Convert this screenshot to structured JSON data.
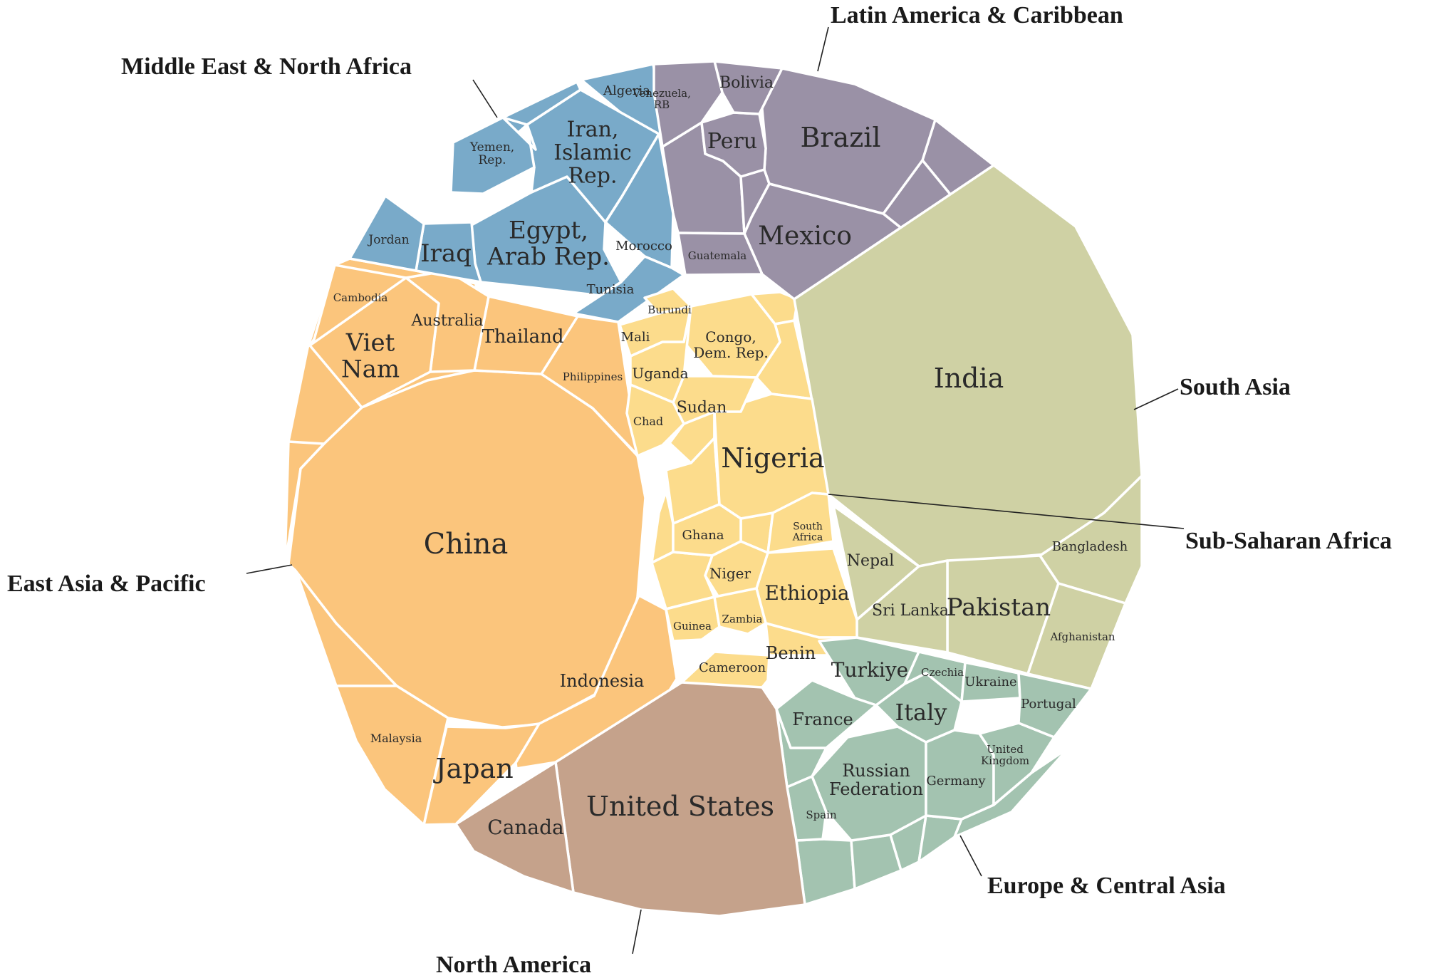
{
  "regions": [
    {
      "id": "mena",
      "name": "Middle East & North Africa",
      "color": "#79aac9"
    },
    {
      "id": "lac",
      "name": "Latin America & Caribbean",
      "color": "#9a91a6"
    },
    {
      "id": "sa",
      "name": "South Asia",
      "color": "#cfd1a4"
    },
    {
      "id": "ssa",
      "name": "Sub-Saharan Africa",
      "color": "#fcdc8c"
    },
    {
      "id": "eap",
      "name": "East Asia & Pacific",
      "color": "#fbc57c"
    },
    {
      "id": "eca",
      "name": "Europe & Central Asia",
      "color": "#a3c3b0"
    },
    {
      "id": "na",
      "name": "North America",
      "color": "#c5a28b"
    }
  ],
  "countries": [
    {
      "name": "China",
      "region": "eap"
    },
    {
      "name": "Japan",
      "region": "eap"
    },
    {
      "name": "Indonesia",
      "region": "eap"
    },
    {
      "name": "Malaysia",
      "region": "eap"
    },
    {
      "name": "Philippines",
      "region": "eap"
    },
    {
      "name": "Thailand",
      "region": "eap"
    },
    {
      "name": "Australia",
      "region": "eap"
    },
    {
      "name": "Viet Nam",
      "region": "eap"
    },
    {
      "name": "Cambodia",
      "region": "eap"
    },
    {
      "name": "Egypt, Arab Rep.",
      "region": "mena"
    },
    {
      "name": "Iran, Islamic Rep.",
      "region": "mena"
    },
    {
      "name": "Iraq",
      "region": "mena"
    },
    {
      "name": "Jordan",
      "region": "mena"
    },
    {
      "name": "Yemen, Rep.",
      "region": "mena"
    },
    {
      "name": "Algeria",
      "region": "mena"
    },
    {
      "name": "Morocco",
      "region": "mena"
    },
    {
      "name": "Tunisia",
      "region": "mena"
    },
    {
      "name": "Brazil",
      "region": "lac"
    },
    {
      "name": "Mexico",
      "region": "lac"
    },
    {
      "name": "Peru",
      "region": "lac"
    },
    {
      "name": "Bolivia",
      "region": "lac"
    },
    {
      "name": "Venezuela, RB",
      "region": "lac"
    },
    {
      "name": "Guatemala",
      "region": "lac"
    },
    {
      "name": "India",
      "region": "sa"
    },
    {
      "name": "Pakistan",
      "region": "sa"
    },
    {
      "name": "Bangladesh",
      "region": "sa"
    },
    {
      "name": "Afghanistan",
      "region": "sa"
    },
    {
      "name": "Nepal",
      "region": "sa"
    },
    {
      "name": "Sri Lanka",
      "region": "sa"
    },
    {
      "name": "Nigeria",
      "region": "ssa"
    },
    {
      "name": "Ethiopia",
      "region": "ssa"
    },
    {
      "name": "Congo, Dem. Rep.",
      "region": "ssa"
    },
    {
      "name": "South Africa",
      "region": "ssa"
    },
    {
      "name": "Sudan",
      "region": "ssa"
    },
    {
      "name": "Uganda",
      "region": "ssa"
    },
    {
      "name": "Mali",
      "region": "ssa"
    },
    {
      "name": "Burundi",
      "region": "ssa"
    },
    {
      "name": "Chad",
      "region": "ssa"
    },
    {
      "name": "Ghana",
      "region": "ssa"
    },
    {
      "name": "Niger",
      "region": "ssa"
    },
    {
      "name": "Guinea",
      "region": "ssa"
    },
    {
      "name": "Zambia",
      "region": "ssa"
    },
    {
      "name": "Benin",
      "region": "ssa"
    },
    {
      "name": "Cameroon",
      "region": "ssa"
    },
    {
      "name": "Turkiye",
      "region": "eca"
    },
    {
      "name": "France",
      "region": "eca"
    },
    {
      "name": "Italy",
      "region": "eca"
    },
    {
      "name": "Russian Federation",
      "region": "eca"
    },
    {
      "name": "Germany",
      "region": "eca"
    },
    {
      "name": "United Kingdom",
      "region": "eca"
    },
    {
      "name": "Spain",
      "region": "eca"
    },
    {
      "name": "Czechia",
      "region": "eca"
    },
    {
      "name": "Ukraine",
      "region": "eca"
    },
    {
      "name": "Portugal",
      "region": "eca"
    },
    {
      "name": "United States",
      "region": "na"
    },
    {
      "name": "Canada",
      "region": "na"
    }
  ]
}
